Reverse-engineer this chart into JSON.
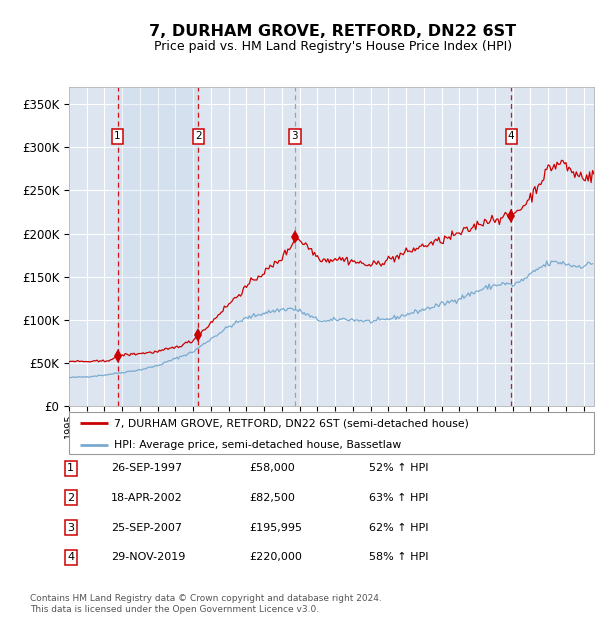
{
  "title": "7, DURHAM GROVE, RETFORD, DN22 6ST",
  "subtitle": "Price paid vs. HM Land Registry's House Price Index (HPI)",
  "ylim": [
    0,
    370000
  ],
  "yticks": [
    0,
    50000,
    100000,
    150000,
    200000,
    250000,
    300000,
    350000
  ],
  "ytick_labels": [
    "£0",
    "£50K",
    "£100K",
    "£150K",
    "£200K",
    "£250K",
    "£300K",
    "£350K"
  ],
  "background_color": "#ffffff",
  "plot_bg_color": "#dde6f0",
  "grid_color": "#ffffff",
  "red_line_color": "#cc0000",
  "blue_line_color": "#7aaad0",
  "sale_dates_decimal": [
    1997.736,
    2002.296,
    2007.731,
    2019.912
  ],
  "sale_prices": [
    58000,
    82500,
    195995,
    220000
  ],
  "sale_labels": [
    "1",
    "2",
    "3",
    "4"
  ],
  "vline_styles": [
    "dashed",
    "dashed",
    "dashed",
    "dashed"
  ],
  "vline_colors": [
    "#cc0000",
    "#cc0000",
    "#999999",
    "#cc0000"
  ],
  "legend_line1": "7, DURHAM GROVE, RETFORD, DN22 6ST (semi-detached house)",
  "legend_line2": "HPI: Average price, semi-detached house, Bassetlaw",
  "table_rows": [
    [
      "1",
      "26-SEP-1997",
      "£58,000",
      "52% ↑ HPI"
    ],
    [
      "2",
      "18-APR-2002",
      "£82,500",
      "63% ↑ HPI"
    ],
    [
      "3",
      "25-SEP-2007",
      "£195,995",
      "62% ↑ HPI"
    ],
    [
      "4",
      "29-NOV-2019",
      "£220,000",
      "58% ↑ HPI"
    ]
  ],
  "footnote": "Contains HM Land Registry data © Crown copyright and database right 2024.\nThis data is licensed under the Open Government Licence v3.0.",
  "xstart": 1995.0,
  "xend": 2024.58,
  "hpi_key_x": [
    1995.0,
    1996.0,
    1997.0,
    1997.5,
    1998.0,
    1999.0,
    2000.0,
    2001.0,
    2002.0,
    2003.0,
    2004.0,
    2005.0,
    2006.0,
    2007.0,
    2007.5,
    2008.0,
    2008.5,
    2009.0,
    2009.5,
    2010.0,
    2010.5,
    2011.0,
    2011.5,
    2012.0,
    2012.5,
    2013.0,
    2013.5,
    2014.0,
    2014.5,
    2015.0,
    2015.5,
    2016.0,
    2016.5,
    2017.0,
    2017.5,
    2018.0,
    2018.5,
    2019.0,
    2019.5,
    2020.0,
    2020.5,
    2021.0,
    2021.5,
    2022.0,
    2022.5,
    2023.0,
    2023.5,
    2024.0,
    2024.5
  ],
  "hpi_key_y": [
    33000,
    34000,
    36000,
    37500,
    39000,
    42000,
    47000,
    55000,
    63000,
    78000,
    92000,
    102000,
    108000,
    112000,
    113000,
    110000,
    105000,
    100000,
    98000,
    100000,
    101000,
    100000,
    99000,
    98000,
    99000,
    101000,
    103000,
    106000,
    109000,
    112000,
    115000,
    118000,
    121000,
    125000,
    129000,
    133000,
    137000,
    140000,
    142000,
    140000,
    145000,
    152000,
    160000,
    165000,
    167000,
    165000,
    162000,
    163000,
    165000
  ],
  "price_key_x": [
    1995.0,
    1996.0,
    1997.0,
    1997.5,
    1997.736,
    1998.0,
    1999.0,
    2000.0,
    2001.0,
    2001.5,
    2002.0,
    2002.296,
    2002.8,
    2003.5,
    2004.0,
    2004.5,
    2005.0,
    2005.5,
    2006.0,
    2006.5,
    2007.0,
    2007.5,
    2007.731,
    2008.0,
    2008.3,
    2008.7,
    2009.0,
    2009.5,
    2010.0,
    2010.5,
    2011.0,
    2011.5,
    2012.0,
    2012.5,
    2013.0,
    2013.5,
    2014.0,
    2014.5,
    2015.0,
    2015.5,
    2016.0,
    2016.5,
    2017.0,
    2017.5,
    2018.0,
    2018.5,
    2019.0,
    2019.5,
    2019.912,
    2020.0,
    2020.5,
    2021.0,
    2021.3,
    2021.6,
    2021.9,
    2022.0,
    2022.3,
    2022.5,
    2022.7,
    2022.9,
    2023.0,
    2023.3,
    2023.6,
    2024.0,
    2024.3,
    2024.58
  ],
  "price_key_y": [
    52000,
    51500,
    52000,
    55000,
    58000,
    59000,
    61000,
    63000,
    68000,
    72000,
    76000,
    82500,
    92000,
    108000,
    118000,
    128000,
    138000,
    148000,
    155000,
    163000,
    172000,
    185000,
    195995,
    192000,
    188000,
    180000,
    173000,
    169000,
    171000,
    170000,
    168000,
    165000,
    163000,
    166000,
    170000,
    173000,
    178000,
    182000,
    186000,
    189000,
    192000,
    196000,
    200000,
    204000,
    210000,
    215000,
    217000,
    219000,
    220000,
    222000,
    230000,
    242000,
    252000,
    262000,
    270000,
    275000,
    278000,
    280000,
    282000,
    283000,
    278000,
    272000,
    268000,
    267000,
    265000,
    268000
  ]
}
